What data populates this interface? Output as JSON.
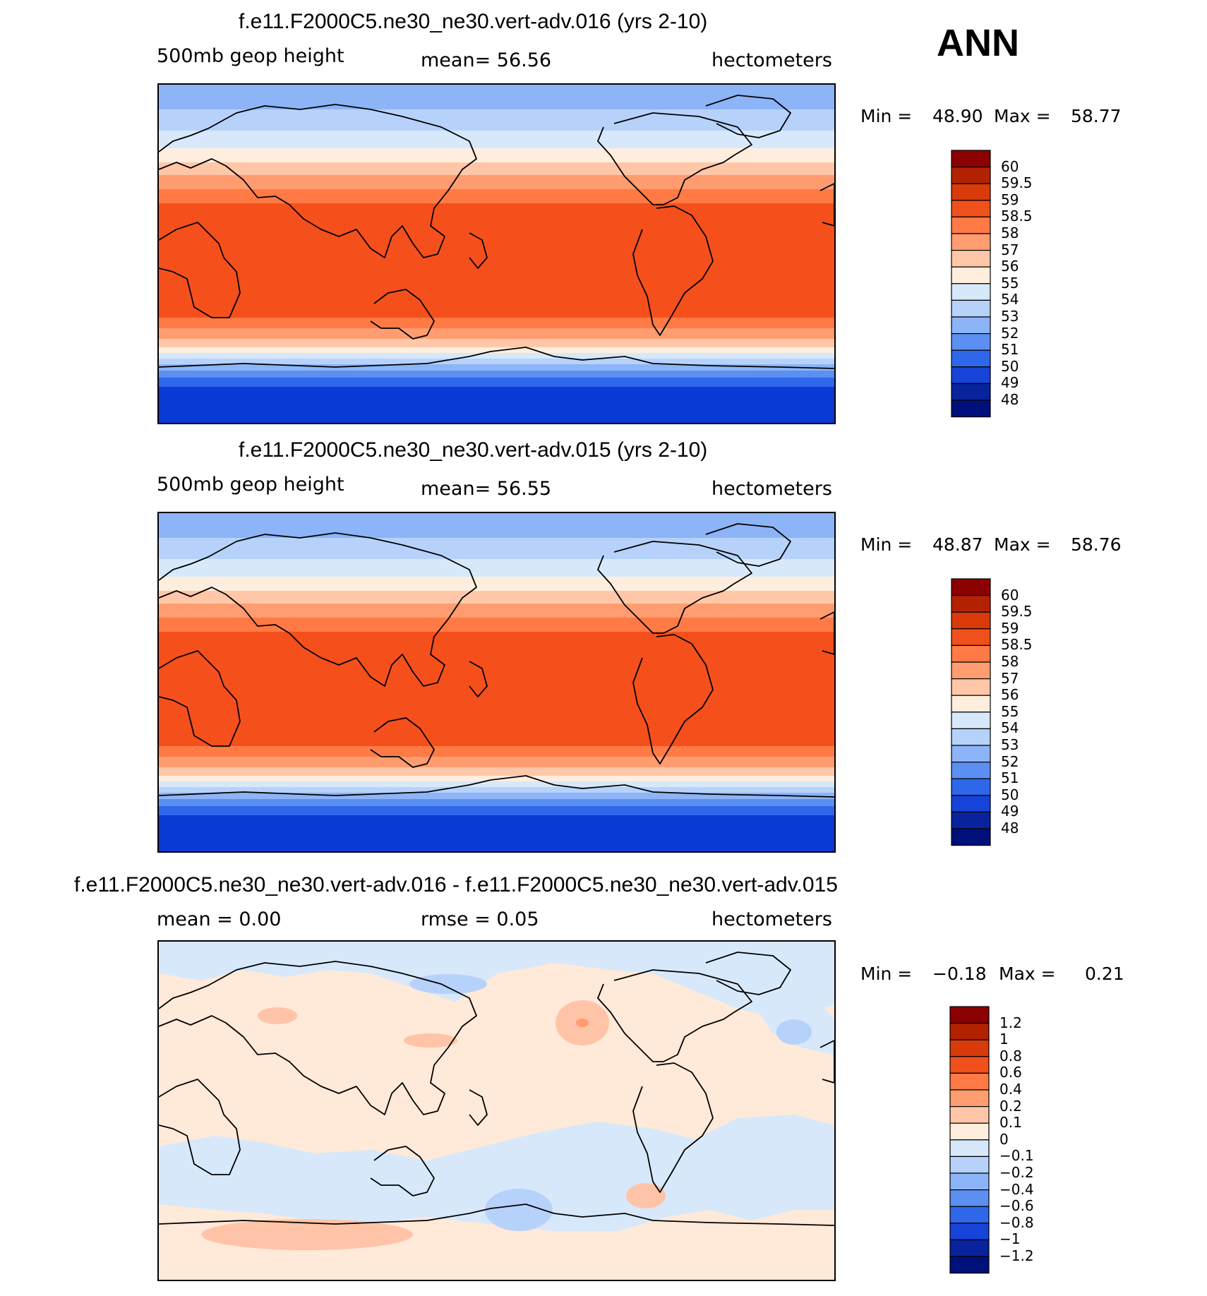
{
  "season": "ANN",
  "panels": [
    {
      "title": "f.e11.F2000C5.ne30_ne30.vert-adv.016 (yrs 2-10)",
      "left_label": "500mb  geop  height",
      "center_label": "mean=   56.56",
      "units": "hectometers",
      "min_label": "Min  =",
      "min_value": "48.90",
      "max_label": "Max  =",
      "max_value": "58.77",
      "kind": "field",
      "colorbar_labels": [
        "60",
        "59.5",
        "59",
        "58.5",
        "58",
        "57",
        "56",
        "55",
        "54",
        "53",
        "52",
        "51",
        "50",
        "49",
        "48"
      ]
    },
    {
      "title": "f.e11.F2000C5.ne30_ne30.vert-adv.015 (yrs 2-10)",
      "left_label": "500mb  geop  height",
      "center_label": "mean=   56.55",
      "units": "hectometers",
      "min_label": "Min  =",
      "min_value": "48.87",
      "max_label": "Max  =",
      "max_value": "58.76",
      "kind": "field",
      "colorbar_labels": [
        "60",
        "59.5",
        "59",
        "58.5",
        "58",
        "57",
        "56",
        "55",
        "54",
        "53",
        "52",
        "51",
        "50",
        "49",
        "48"
      ]
    },
    {
      "title": "f.e11.F2000C5.ne30_ne30.vert-adv.016 - f.e11.F2000C5.ne30_ne30.vert-adv.015",
      "left_label": "mean  =     0.00",
      "center_label": "rmse  =     0.05",
      "units": "hectometers",
      "min_label": "Min  =",
      "min_value": "−0.18",
      "max_label": "Max  =",
      "max_value": "0.21",
      "kind": "diff",
      "colorbar_labels": [
        "1.2",
        "1",
        "0.8",
        "0.6",
        "0.4",
        "0.2",
        "0.1",
        "0",
        "−0.1",
        "−0.2",
        "−0.4",
        "−0.6",
        "−0.8",
        "−1",
        "−1.2"
      ]
    }
  ],
  "colorbar_colors": [
    "#8b0000",
    "#b22200",
    "#d93a0a",
    "#f0501c",
    "#ff7a45",
    "#ff9c70",
    "#ffc7a8",
    "#ffeedd",
    "#d7e8fb",
    "#b7d2fa",
    "#8cb4f7",
    "#5b8ff2",
    "#2e67ea",
    "#1643d8",
    "#08239b",
    "#00107a"
  ],
  "field_band_colors": {
    "tropics": "#f5501c",
    "subtropic_1": "#ff7a45",
    "subtropic_2": "#ff9c70",
    "subtropic_3": "#ffc7a8",
    "midlat_1": "#ffeedd",
    "midlat_2": "#d7e8fb",
    "midlat_3": "#b7d2fa",
    "highlat_1": "#8cb4f7",
    "highlat_2": "#5b8ff2",
    "highlat_3": "#2e67ea",
    "polar": "#0a3ad6"
  },
  "diff_colors": {
    "pos_1": "#ffe9d8",
    "pos_2": "#ffc4a8",
    "pos_3": "#ff9c70",
    "neg_1": "#d7e8fb",
    "neg_2": "#b7d2fa"
  }
}
